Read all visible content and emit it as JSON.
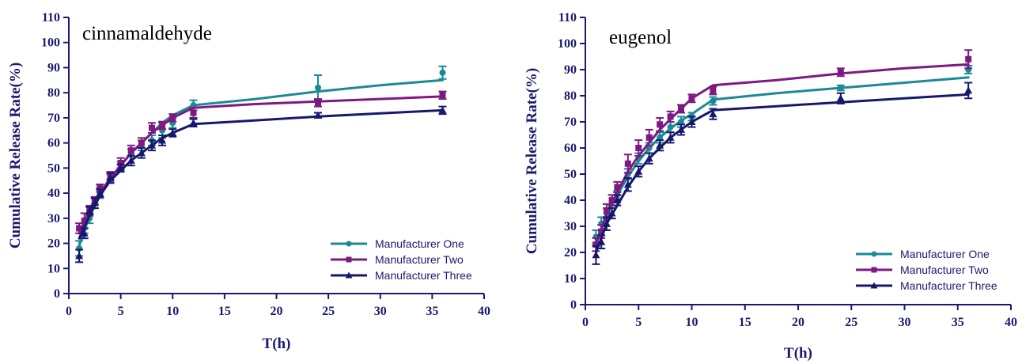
{
  "colors": {
    "axis": "#1a1a6e",
    "one": "#1b8a94",
    "two": "#7d1a82",
    "three": "#16186e"
  },
  "chart_data": [
    {
      "type": "line",
      "title": "cinnamaldehyde",
      "xlabel": "T(h)",
      "ylabel": "Cumulative Release Rate(%)",
      "xlim": [
        0,
        40
      ],
      "ylim": [
        0,
        110
      ],
      "xticks": [
        0,
        5,
        10,
        15,
        20,
        25,
        30,
        35,
        40
      ],
      "yticks": [
        0,
        10,
        20,
        30,
        40,
        50,
        60,
        70,
        80,
        90,
        100,
        110
      ],
      "legend_position": "bottom-right",
      "series": [
        {
          "name": "Manufacturer One",
          "marker": "circle",
          "color": "#1b8a94",
          "points": [
            [
              1,
              18
            ],
            [
              1.5,
              26
            ],
            [
              2,
              30
            ],
            [
              2.5,
              36
            ],
            [
              3,
              40
            ],
            [
              4,
              46
            ],
            [
              5,
              51
            ],
            [
              6,
              56
            ],
            [
              7,
              59
            ],
            [
              8,
              61
            ],
            [
              9,
              65
            ],
            [
              10,
              68
            ],
            [
              12,
              75
            ],
            [
              24,
              82
            ],
            [
              36,
              88
            ]
          ],
          "errors": [
            3,
            2,
            2,
            2,
            2,
            1.5,
            1.5,
            1.5,
            2,
            2,
            3,
            2,
            2,
            5,
            2.5
          ],
          "fit": [
            [
              1,
              19
            ],
            [
              2,
              31
            ],
            [
              3,
              40
            ],
            [
              4,
              46
            ],
            [
              5,
              51
            ],
            [
              6,
              56
            ],
            [
              7,
              60
            ],
            [
              8,
              64
            ],
            [
              9,
              68
            ],
            [
              10,
              71
            ],
            [
              12,
              75
            ],
            [
              18,
              77.5
            ],
            [
              24,
              80.5
            ],
            [
              30,
              83
            ],
            [
              36,
              85
            ]
          ]
        },
        {
          "name": "Manufacturer Two",
          "marker": "square",
          "color": "#7d1a82",
          "points": [
            [
              1,
              26
            ],
            [
              1.5,
              29
            ],
            [
              2,
              33
            ],
            [
              2.5,
              37
            ],
            [
              3,
              42
            ],
            [
              4,
              47
            ],
            [
              5,
              52
            ],
            [
              6,
              57
            ],
            [
              7,
              60
            ],
            [
              8,
              66
            ],
            [
              9,
              67
            ],
            [
              10,
              70
            ],
            [
              12,
              72
            ],
            [
              24,
              76
            ],
            [
              36,
              79
            ]
          ],
          "errors": [
            2,
            3,
            2,
            1.5,
            1.5,
            1.5,
            2,
            2,
            2,
            2,
            1.5,
            1.5,
            2,
            1.5,
            1.5
          ],
          "fit": [
            [
              1,
              24
            ],
            [
              2,
              33
            ],
            [
              3,
              40
            ],
            [
              4,
              46
            ],
            [
              5,
              51
            ],
            [
              6,
              56
            ],
            [
              7,
              60
            ],
            [
              8,
              64
            ],
            [
              9,
              67
            ],
            [
              10,
              70
            ],
            [
              12,
              74
            ],
            [
              18,
              75.5
            ],
            [
              24,
              76.5
            ],
            [
              30,
              77.5
            ],
            [
              36,
              78.5
            ]
          ]
        },
        {
          "name": "Manufacturer Three",
          "marker": "triangle",
          "color": "#16186e",
          "points": [
            [
              1,
              15
            ],
            [
              1.5,
              24
            ],
            [
              2,
              33
            ],
            [
              2.5,
              36
            ],
            [
              3,
              40
            ],
            [
              4,
              46
            ],
            [
              5,
              50
            ],
            [
              6,
              53
            ],
            [
              7,
              56
            ],
            [
              8,
              59
            ],
            [
              9,
              61
            ],
            [
              10,
              64
            ],
            [
              12,
              68
            ],
            [
              24,
              71
            ],
            [
              36,
              73
            ]
          ],
          "errors": [
            2.5,
            2,
            1.5,
            2,
            1.5,
            2,
            1.5,
            2,
            2,
            2,
            2,
            1.5,
            1.5,
            1,
            1.5
          ],
          "fit": [
            [
              1,
              22
            ],
            [
              2,
              31
            ],
            [
              3,
              39
            ],
            [
              4,
              45
            ],
            [
              5,
              49
            ],
            [
              6,
              53
            ],
            [
              7,
              56
            ],
            [
              8,
              59
            ],
            [
              9,
              62
            ],
            [
              10,
              64
            ],
            [
              12,
              67.5
            ],
            [
              18,
              69
            ],
            [
              24,
              70.5
            ],
            [
              30,
              71.8
            ],
            [
              36,
              73
            ]
          ]
        }
      ]
    },
    {
      "type": "line",
      "title": "eugenol",
      "xlabel": "T(h)",
      "ylabel": "Cumulative Release Rate(%)",
      "xlim": [
        0,
        40
      ],
      "ylim": [
        0,
        110
      ],
      "xticks": [
        0,
        5,
        10,
        15,
        20,
        25,
        30,
        35,
        40
      ],
      "yticks": [
        0,
        10,
        20,
        30,
        40,
        50,
        60,
        70,
        80,
        90,
        100,
        110
      ],
      "legend_position": "bottom-right",
      "series": [
        {
          "name": "Manufacturer One",
          "marker": "circle",
          "color": "#1b8a94",
          "points": [
            [
              1,
              26
            ],
            [
              1.5,
              31
            ],
            [
              2,
              35
            ],
            [
              2.5,
              40
            ],
            [
              3,
              42
            ],
            [
              4,
              50
            ],
            [
              5,
              56
            ],
            [
              6,
              60
            ],
            [
              7,
              64
            ],
            [
              8,
              68
            ],
            [
              9,
              70
            ],
            [
              10,
              72
            ],
            [
              12,
              78
            ],
            [
              24,
              83
            ],
            [
              36,
              90
            ]
          ],
          "errors": [
            2.5,
            2.5,
            2,
            2,
            1.5,
            2,
            2,
            2,
            2,
            2,
            2,
            1.5,
            1.5,
            1,
            1.5
          ],
          "fit": [
            [
              1,
              24
            ],
            [
              2,
              34
            ],
            [
              3,
              42
            ],
            [
              4,
              49
            ],
            [
              5,
              55
            ],
            [
              6,
              60
            ],
            [
              7,
              64
            ],
            [
              8,
              67.5
            ],
            [
              9,
              70.5
            ],
            [
              10,
              73
            ],
            [
              12,
              78.5
            ],
            [
              18,
              81
            ],
            [
              24,
              83
            ],
            [
              30,
              85
            ],
            [
              36,
              87
            ]
          ]
        },
        {
          "name": "Manufacturer Two",
          "marker": "square",
          "color": "#7d1a82",
          "points": [
            [
              1,
              23
            ],
            [
              1.5,
              28
            ],
            [
              2,
              36
            ],
            [
              2.5,
              40
            ],
            [
              3,
              45
            ],
            [
              4,
              54
            ],
            [
              5,
              60
            ],
            [
              6,
              64
            ],
            [
              7,
              69
            ],
            [
              8,
              72
            ],
            [
              9,
              75
            ],
            [
              10,
              79
            ],
            [
              12,
              82
            ],
            [
              24,
              89
            ],
            [
              36,
              94
            ]
          ],
          "errors": [
            2.5,
            2.5,
            2.5,
            2,
            2,
            3.5,
            3,
            3,
            2.5,
            2,
            1.5,
            1.5,
            1.5,
            1.5,
            3.5
          ],
          "fit": [
            [
              1,
              23
            ],
            [
              2,
              35
            ],
            [
              3,
              43
            ],
            [
              4,
              51
            ],
            [
              5,
              57
            ],
            [
              6,
              62
            ],
            [
              7,
              67
            ],
            [
              8,
              71
            ],
            [
              9,
              75
            ],
            [
              10,
              79
            ],
            [
              12,
              84
            ],
            [
              18,
              86
            ],
            [
              24,
              88.5
            ],
            [
              30,
              90.5
            ],
            [
              36,
              92
            ]
          ]
        },
        {
          "name": "Manufacturer Three",
          "marker": "triangle",
          "color": "#16186e",
          "points": [
            [
              1,
              19
            ],
            [
              1.5,
              24
            ],
            [
              2,
              31
            ],
            [
              2.5,
              35
            ],
            [
              3,
              40
            ],
            [
              4,
              46
            ],
            [
              5,
              51
            ],
            [
              6,
              56
            ],
            [
              7,
              61
            ],
            [
              8,
              64
            ],
            [
              9,
              67
            ],
            [
              10,
              70
            ],
            [
              12,
              73
            ],
            [
              24,
              79
            ],
            [
              36,
              82
            ]
          ],
          "errors": [
            3.5,
            2.5,
            2.5,
            2,
            2,
            2.5,
            2,
            2,
            2,
            2,
            2,
            2,
            2,
            2,
            3
          ],
          "fit": [
            [
              1,
              20
            ],
            [
              2,
              31
            ],
            [
              3,
              38
            ],
            [
              4,
              45
            ],
            [
              5,
              51
            ],
            [
              6,
              56
            ],
            [
              7,
              60
            ],
            [
              8,
              64
            ],
            [
              9,
              67
            ],
            [
              10,
              70
            ],
            [
              12,
              74.5
            ],
            [
              18,
              76
            ],
            [
              24,
              77.5
            ],
            [
              30,
              79
            ],
            [
              36,
              80.5
            ]
          ]
        }
      ]
    }
  ]
}
